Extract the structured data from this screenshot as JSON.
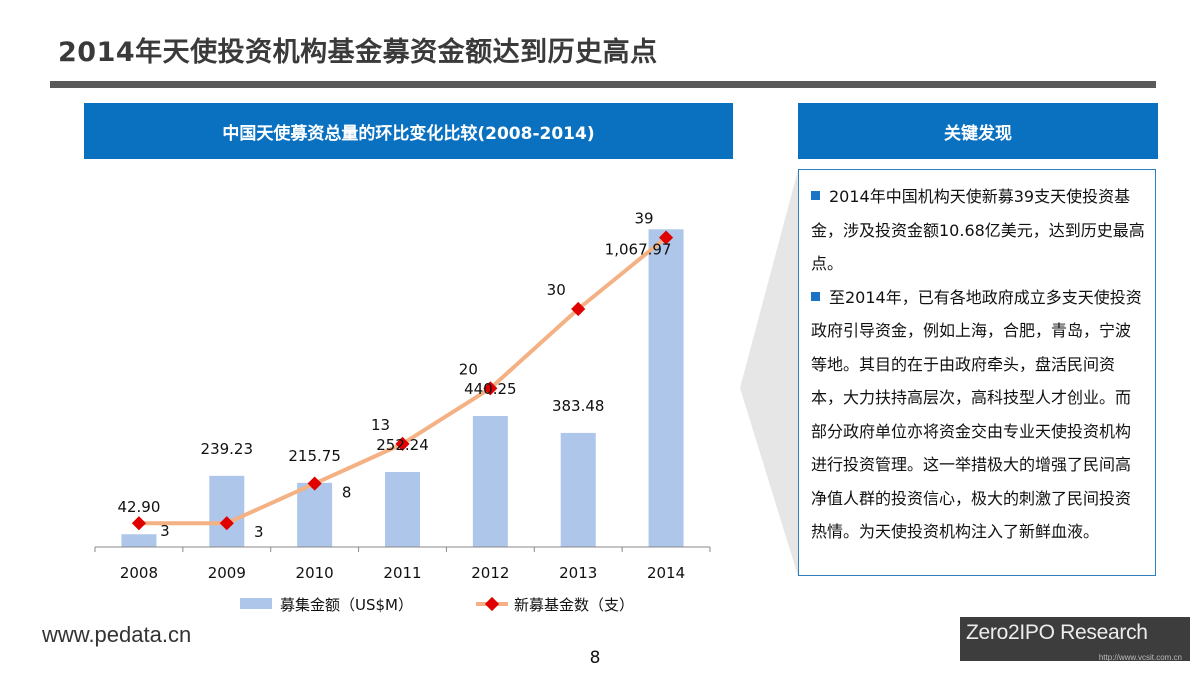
{
  "page": {
    "title": "2014年天使投资机构基金募资金额达到历史高点",
    "page_number": "8",
    "website": "www.pedata.cn",
    "logo_text": "Zero2IPO Research",
    "logo_url": "http://www.vcsit.com.cn"
  },
  "chart_header": "中国天使募资总量的环比变化比较(2008-2014)",
  "findings": {
    "title": "关键发现",
    "items": [
      "2014年中国机构天使新募39支天使投资基金，涉及投资金额10.68亿美元，达到历史最高点。",
      "至2014年，已有各地政府成立多支天使投资政府引导资金，例如上海，合肥，青岛，宁波等地。其目的在于由政府牵头，盘活民间资本，大力扶持高层次，高科技型人才创业。而部分政府单位亦将资金交由专业天使投资机构进行投资管理。这一举措极大的增强了民间高净值人群的投资信心，极大的刺激了民间投资热情。为天使投资机构注入了新鲜血液。"
    ]
  },
  "colors": {
    "header_blue": "#0a71c1",
    "bar": "#aec6ea",
    "line": "#f4b183",
    "marker": "#e00000"
  },
  "chart_data": {
    "type": "bar",
    "title": "中国天使募资总量的环比变化比较(2008-2014)",
    "categories": [
      "2008",
      "2009",
      "2010",
      "2011",
      "2012",
      "2013",
      "2014"
    ],
    "series": [
      {
        "name": "募集金额（US$M）",
        "type": "bar",
        "axis": "left",
        "values": [
          42.9,
          239.23,
          215.75,
          252.24,
          440.25,
          383.48,
          1067.97
        ],
        "labels": [
          "42.90",
          "239.23",
          "215.75",
          "252.24",
          "440.25",
          "383.48",
          "1,067.97"
        ]
      },
      {
        "name": "新募基金数（支）",
        "type": "line",
        "axis": "right",
        "values": [
          3,
          3,
          8,
          13,
          20,
          30,
          39
        ],
        "labels": [
          "3",
          "3",
          "8",
          "13",
          "20",
          "30",
          "39"
        ]
      }
    ],
    "ylim_left": [
      0,
      1200
    ],
    "ylim_right": [
      0,
      45
    ],
    "legend": "bottom",
    "grid": false
  }
}
